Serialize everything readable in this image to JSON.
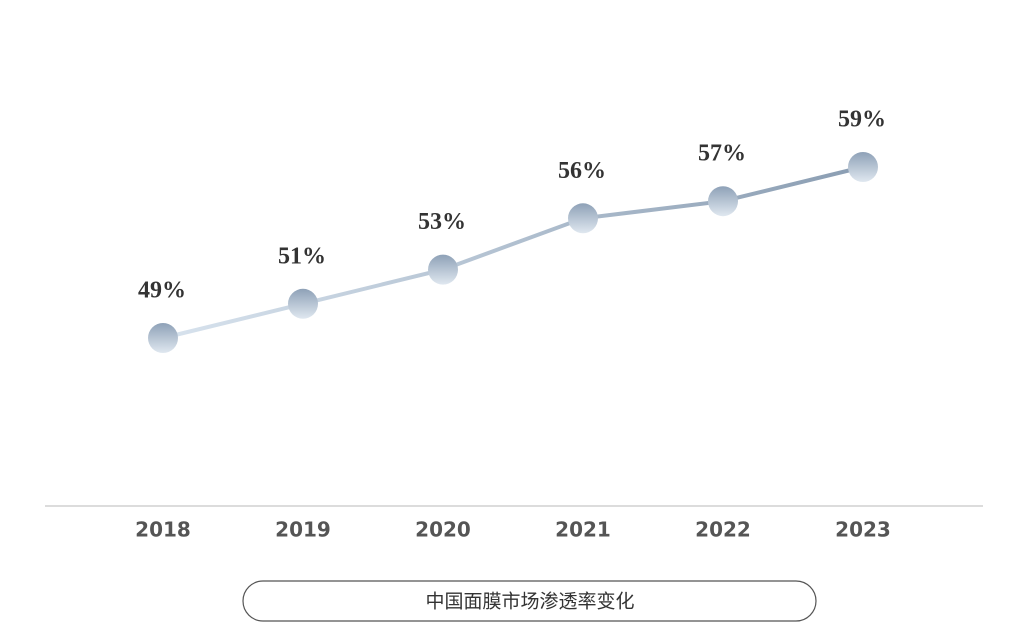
{
  "chart_data": {
    "type": "line",
    "title": "中国面膜市场渗透率变化",
    "categories": [
      "2018",
      "2019",
      "2020",
      "2021",
      "2022",
      "2023"
    ],
    "values": [
      49,
      51,
      53,
      56,
      57,
      59
    ],
    "value_labels": [
      "49%",
      "51%",
      "53%",
      "56%",
      "57%",
      "59%"
    ]
  }
}
